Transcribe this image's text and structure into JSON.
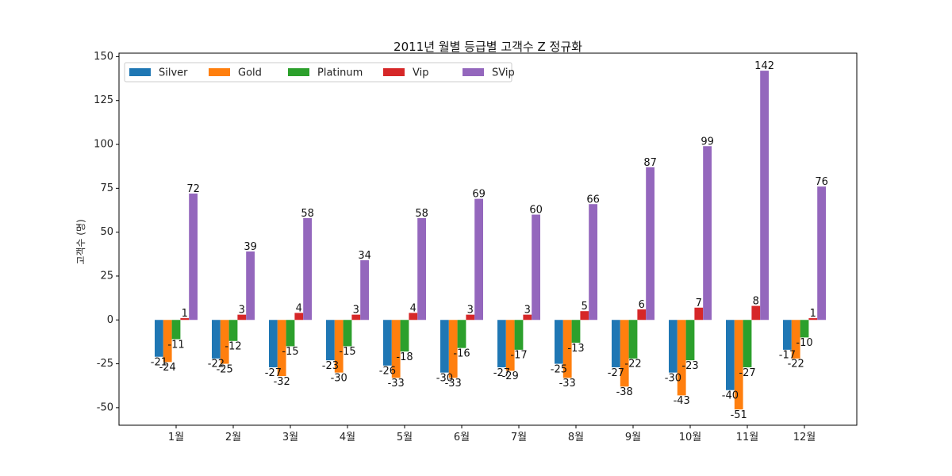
{
  "chart_data": {
    "type": "bar",
    "title": "2011년 월별 등급별 고객수 Z 정규화",
    "xlabel": "",
    "ylabel": "고객수 (명)",
    "ylim": [
      -60,
      152
    ],
    "yticks": [
      150,
      125,
      100,
      75,
      50,
      25,
      0,
      -25,
      -50
    ],
    "ytick_labels": [
      "150",
      "125",
      "100",
      "75",
      "50",
      "25",
      "0",
      "-25",
      "-50"
    ],
    "categories": [
      "1월",
      "2월",
      "3월",
      "4월",
      "5월",
      "6월",
      "7월",
      "8월",
      "9월",
      "10월",
      "11월",
      "12월"
    ],
    "grid": false,
    "legend": {
      "placement": "top-left",
      "columns": 5
    },
    "series": [
      {
        "name": "Silver",
        "color": "#1f77b4",
        "values": [
          -21,
          -22,
          -27,
          -23,
          -26,
          -30,
          -27,
          -25,
          -27,
          -30,
          -40,
          -17
        ]
      },
      {
        "name": "Gold",
        "color": "#ff7f0e",
        "values": [
          -24,
          -25,
          -32,
          -30,
          -33,
          -33,
          -29,
          -33,
          -38,
          -43,
          -51,
          -22
        ]
      },
      {
        "name": "Platinum",
        "color": "#2ca02c",
        "values": [
          -11,
          -12,
          -15,
          -15,
          -18,
          -16,
          -17,
          -13,
          -22,
          -23,
          -27,
          -10
        ]
      },
      {
        "name": "Vip",
        "color": "#d62728",
        "values": [
          1,
          3,
          4,
          3,
          4,
          3,
          3,
          5,
          6,
          7,
          8,
          1
        ]
      },
      {
        "name": "SVip",
        "color": "#9467bd",
        "values": [
          72,
          39,
          58,
          34,
          58,
          69,
          60,
          66,
          87,
          99,
          142,
          76
        ]
      }
    ]
  }
}
